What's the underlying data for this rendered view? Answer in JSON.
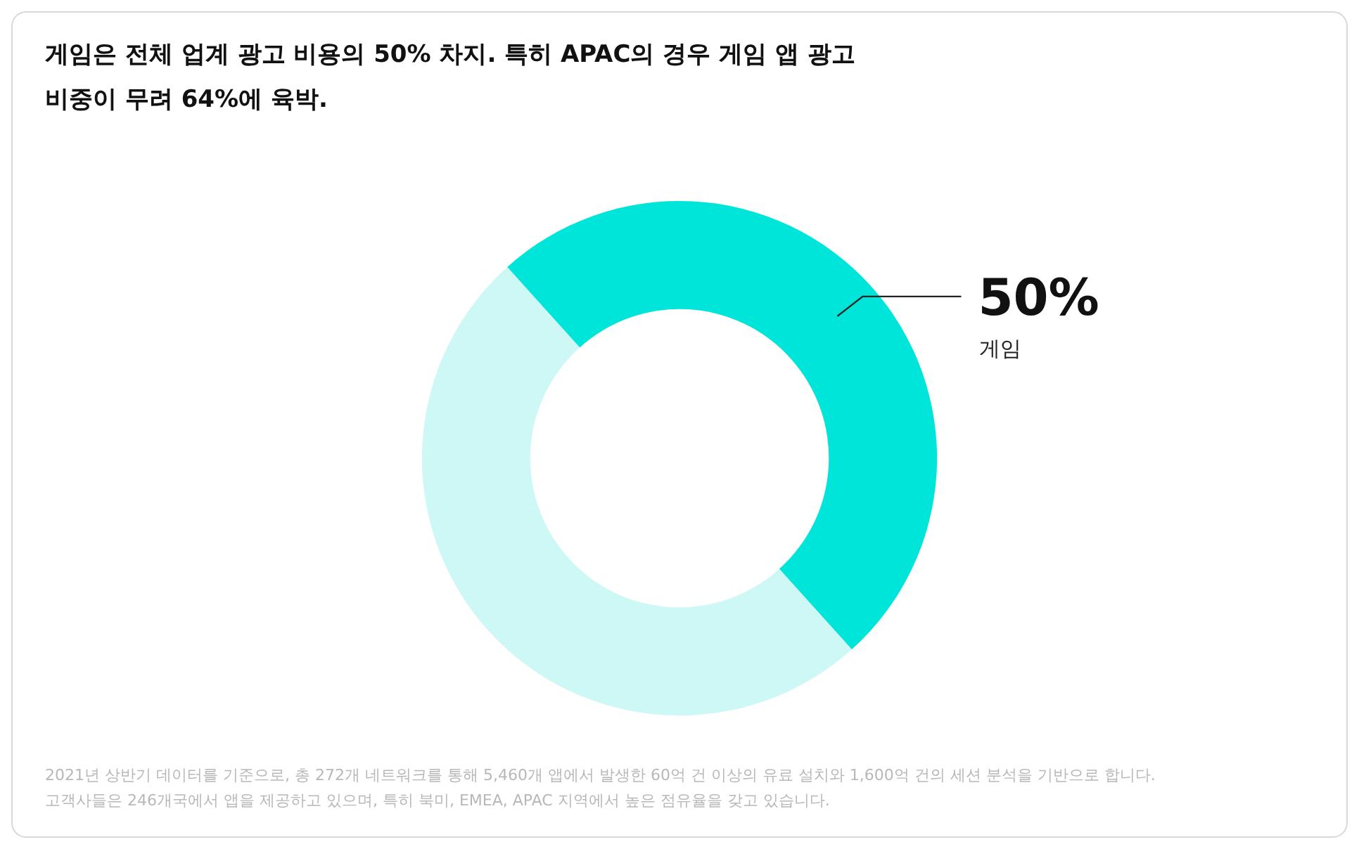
{
  "chart_data": {
    "type": "donut",
    "title": "게임은 전체 업계 광고 비용의 50% 차지. 특히 APAC의 경우 게임 앱 광고\n비중이 무려 64%에 육박.",
    "categories": [
      "게임",
      null
    ],
    "values": [
      50,
      50
    ],
    "colors": [
      "#00e5da",
      "#cdf8f5"
    ],
    "value_labels": [
      "50%",
      null
    ],
    "annotations": [
      "2021년 상반기 데이터를 기준으로, 총 272개 네트워크를 통해 5,460개 앱에서 발생한 60억 건 이상의 유료 설치와 1,600억 건의 세션 분석을 기반으로 합니다.",
      "고객사들은 246개국에서 앱을 제공하고 있으며, 특히 북미, EMEA, APAC 지역에서 높은 점유율을 갖고 있습니다."
    ]
  }
}
